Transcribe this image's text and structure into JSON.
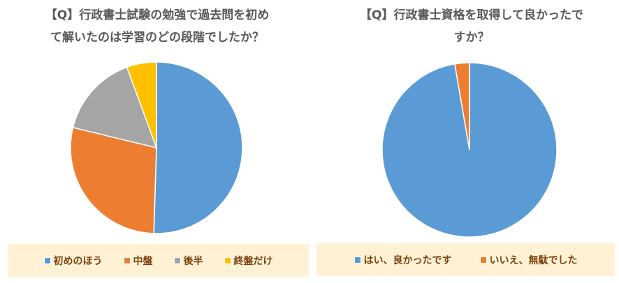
{
  "chart_data": [
    {
      "type": "pie",
      "title_lines": [
        "【Q】行政書士試験の勉強で過去問を初め",
        "て解いたのは学習のどの段階でしたか？"
      ],
      "categories": [
        "初めのほう",
        "中盤",
        "後半",
        "終盤だけ"
      ],
      "values": [
        50.5,
        28.3,
        15.6,
        5.6
      ],
      "unit": "%",
      "colors": [
        "#5b9bd5",
        "#ed7d31",
        "#a5a5a5",
        "#ffc000"
      ],
      "legend": "bottom"
    },
    {
      "type": "pie",
      "title_lines": [
        "【Q】行政書士資格を取得して良かったで",
        "すか？"
      ],
      "categories": [
        "はい、良かったです",
        "いいえ、無駄でした"
      ],
      "values": [
        97.3,
        2.7
      ],
      "unit": "%",
      "colors": [
        "#5b9bd5",
        "#ed7d31"
      ],
      "legend": "bottom"
    }
  ]
}
